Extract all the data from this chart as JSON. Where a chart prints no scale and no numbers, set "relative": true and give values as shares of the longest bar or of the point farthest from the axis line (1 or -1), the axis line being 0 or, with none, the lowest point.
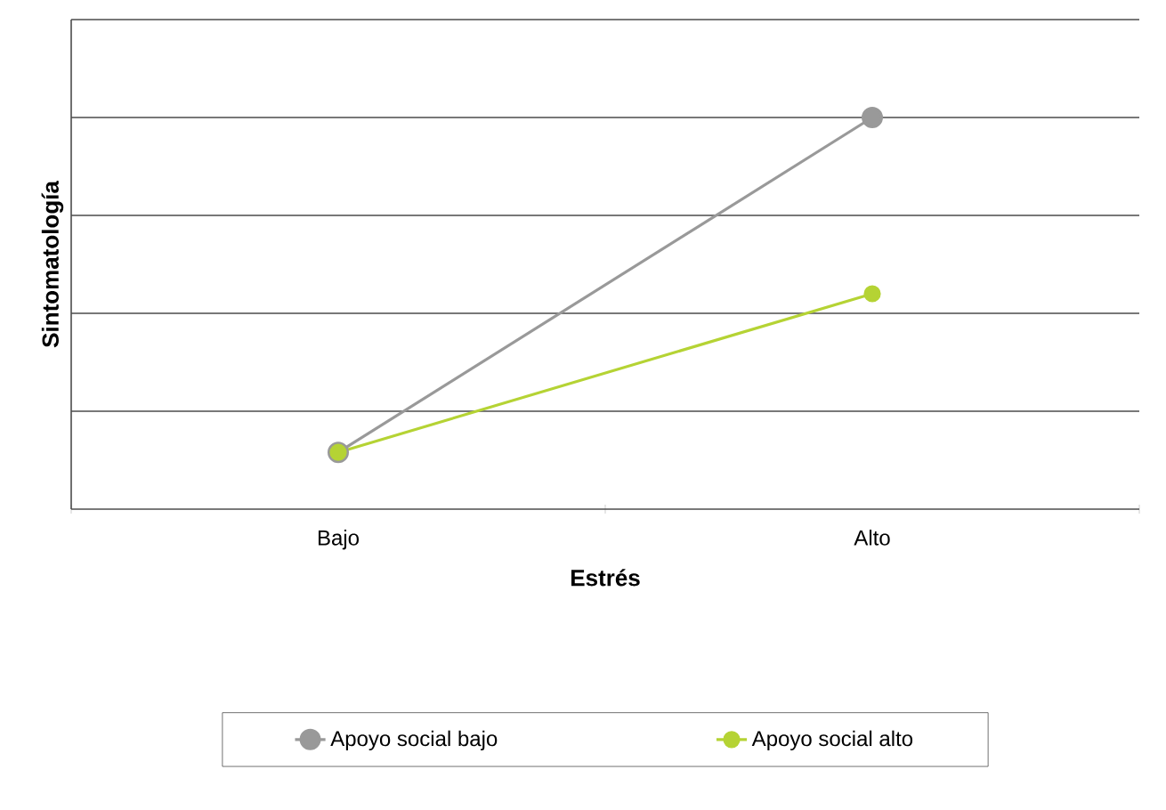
{
  "chart_data": {
    "type": "line",
    "relative": true,
    "xlabel": "Estrés",
    "ylabel": "Sintomatología",
    "categories": [
      "Bajo",
      "Alto"
    ],
    "series": [
      {
        "name": "Apoyo social bajo",
        "color": "#999999",
        "values": [
          0.145,
          1
        ]
      },
      {
        "name": "Apoyo social alto",
        "color": "#b5d334",
        "values": [
          0.145,
          0.55
        ]
      }
    ],
    "grid": "y",
    "legend": "bottom",
    "marker": "circle",
    "line_style": "solid"
  }
}
